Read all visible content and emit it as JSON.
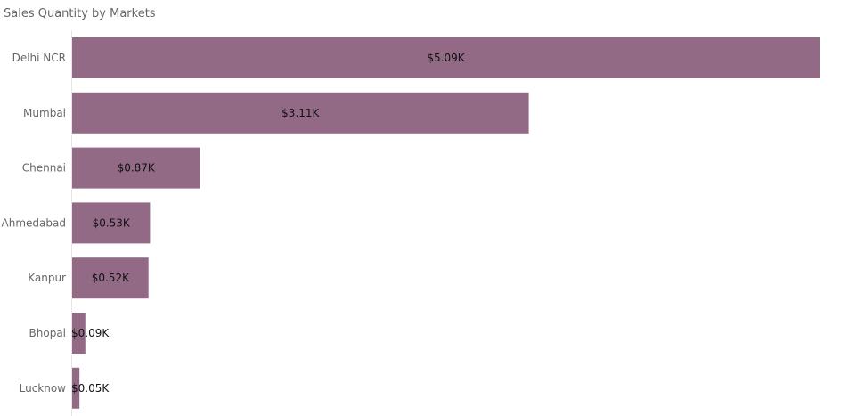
{
  "chart_data": {
    "type": "bar",
    "orientation": "horizontal",
    "title": "Sales Quantity by Markets",
    "categories": [
      "Delhi NCR",
      "Mumbai",
      "Chennai",
      "Ahmedabad",
      "Kanpur",
      "Bhopal",
      "Lucknow"
    ],
    "values": [
      5.09,
      3.11,
      0.87,
      0.53,
      0.52,
      0.09,
      0.05
    ],
    "value_labels": [
      "$5.09K",
      "$3.11K",
      "$0.87K",
      "$0.53K",
      "$0.52K",
      "$0.09K",
      "$0.05K"
    ],
    "xlim": [
      0,
      5.09
    ],
    "grid": false,
    "bar_color": "#936a86"
  }
}
